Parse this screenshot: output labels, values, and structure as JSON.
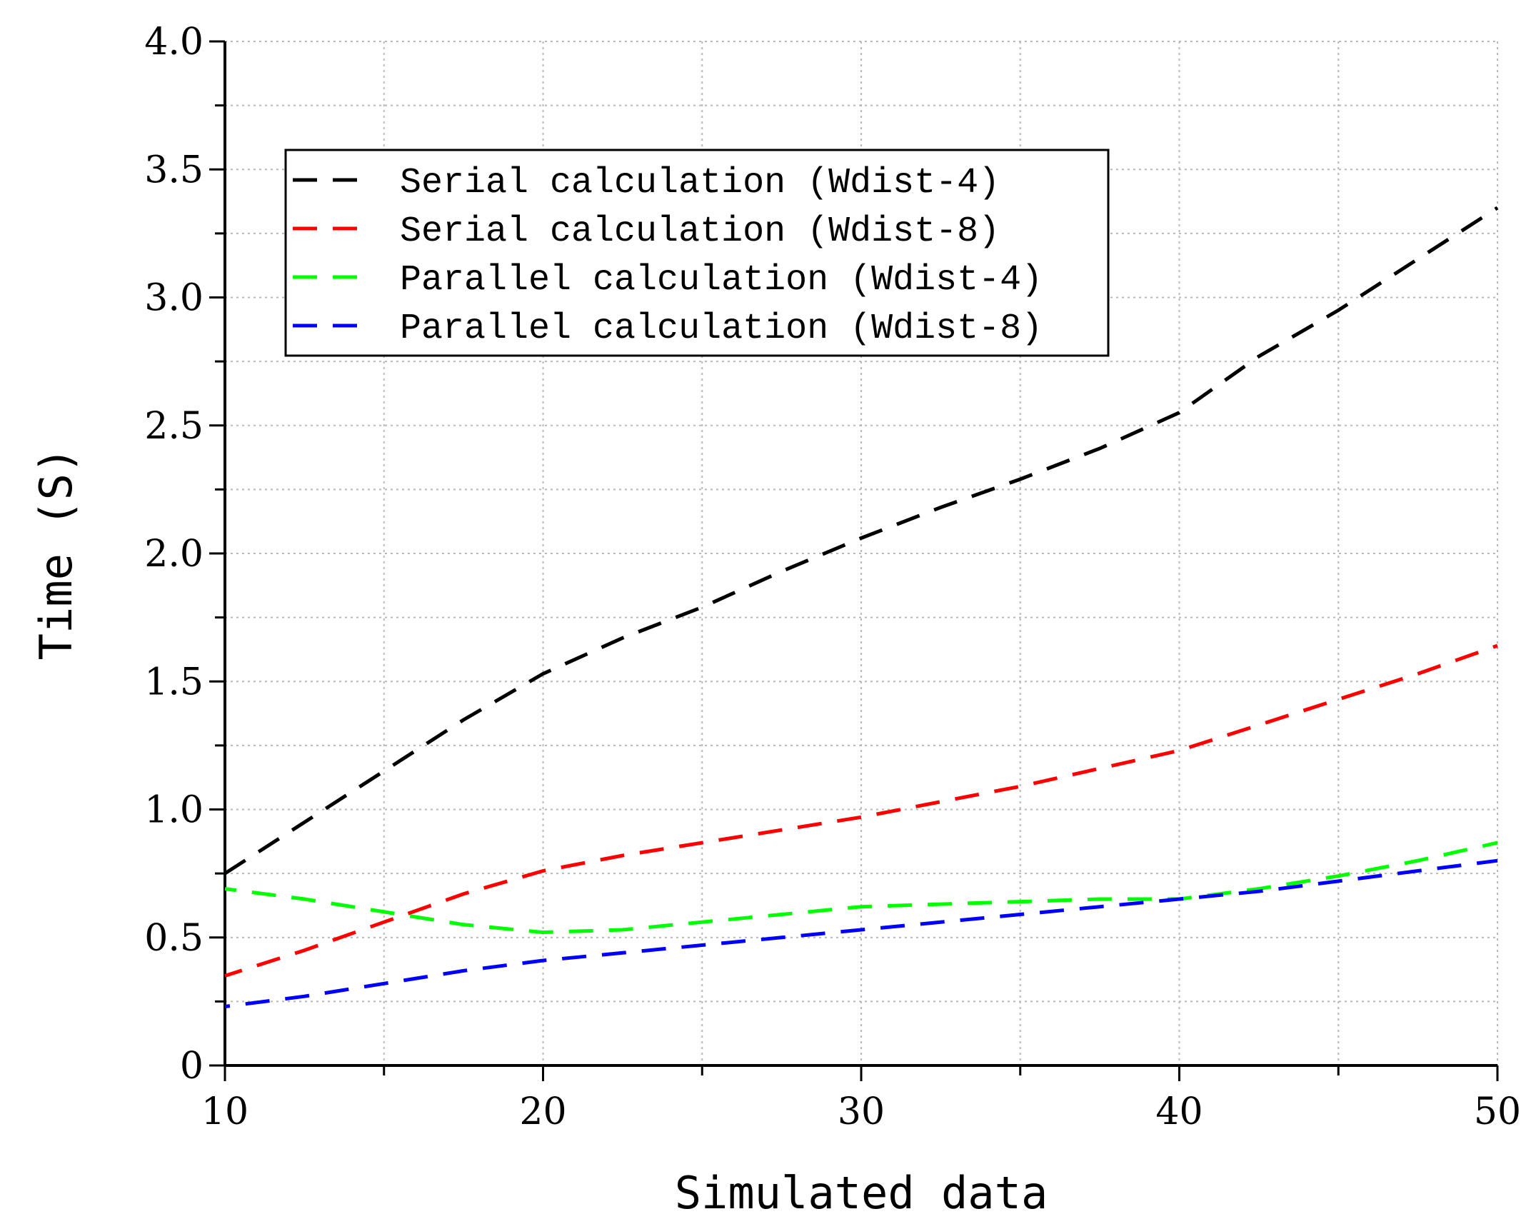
{
  "chart_data": {
    "type": "line",
    "title": "",
    "xlabel": "Simulated data",
    "ylabel": "Time (S)",
    "xlim": [
      10,
      50
    ],
    "ylim": [
      0,
      4.0
    ],
    "x_ticks": [
      {
        "value": 10,
        "label": "10"
      },
      {
        "value": 20,
        "label": "20"
      },
      {
        "value": 30,
        "label": "30"
      },
      {
        "value": 40,
        "label": "40"
      },
      {
        "value": 50,
        "label": "50"
      }
    ],
    "y_ticks": [
      {
        "value": 0,
        "label": "0"
      },
      {
        "value": 0.5,
        "label": "0.5"
      },
      {
        "value": 1.0,
        "label": "1.0"
      },
      {
        "value": 1.5,
        "label": "1.5"
      },
      {
        "value": 2.0,
        "label": "2.0"
      },
      {
        "value": 2.5,
        "label": "2.5"
      },
      {
        "value": 3.0,
        "label": "3.0"
      },
      {
        "value": 3.5,
        "label": "3.5"
      },
      {
        "value": 4.0,
        "label": "4.0"
      }
    ],
    "grid": true,
    "legend_position": "top-left",
    "x": [
      10,
      12.5,
      15,
      17.5,
      20,
      22.5,
      25,
      27.5,
      30,
      32.5,
      35,
      37.5,
      40,
      42.5,
      45,
      47.5,
      50
    ],
    "series": [
      {
        "name": "Serial calculation (Wdist-4)",
        "color": "#000000",
        "values": [
          0.75,
          0.95,
          1.15,
          1.35,
          1.53,
          1.67,
          1.79,
          1.93,
          2.06,
          2.18,
          2.29,
          2.41,
          2.55,
          2.77,
          2.95,
          3.15,
          3.35
        ]
      },
      {
        "name": "Serial calculation (Wdist-8)",
        "color": "#ff0000",
        "values": [
          0.35,
          0.45,
          0.56,
          0.67,
          0.76,
          0.82,
          0.87,
          0.92,
          0.97,
          1.03,
          1.09,
          1.16,
          1.23,
          1.33,
          1.43,
          1.53,
          1.64
        ]
      },
      {
        "name": "Parallel calculation (Wdist-4)",
        "color": "#00ff00",
        "values": [
          0.69,
          0.65,
          0.6,
          0.55,
          0.52,
          0.53,
          0.56,
          0.59,
          0.62,
          0.63,
          0.64,
          0.65,
          0.65,
          0.69,
          0.74,
          0.8,
          0.87
        ]
      },
      {
        "name": "Parallel calculation (Wdist-8)",
        "color": "#0000ff",
        "values": [
          0.23,
          0.27,
          0.32,
          0.37,
          0.41,
          0.44,
          0.47,
          0.5,
          0.53,
          0.56,
          0.59,
          0.62,
          0.65,
          0.68,
          0.72,
          0.76,
          0.8
        ]
      }
    ]
  }
}
